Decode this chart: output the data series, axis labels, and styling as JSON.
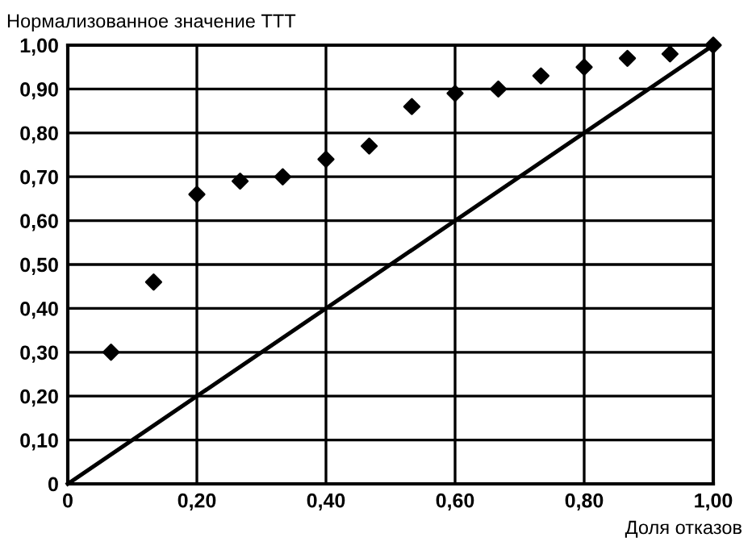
{
  "chart_data": {
    "type": "scatter",
    "ylabel": "Нормализованное значение ТТТ",
    "xlabel": "Доля отказов",
    "series": [
      {
        "color": "#000000",
        "marker": "diamond",
        "x": [
          0.067,
          0.133,
          0.2,
          0.267,
          0.333,
          0.4,
          0.467,
          0.533,
          0.6,
          0.667,
          0.733,
          0.8,
          0.867,
          0.933,
          1.0
        ],
        "values": [
          0.3,
          0.46,
          0.66,
          0.69,
          0.7,
          0.74,
          0.77,
          0.86,
          0.89,
          0.9,
          0.93,
          0.95,
          0.97,
          0.98,
          1.0
        ]
      },
      {
        "type": "line",
        "color": "#000000",
        "marker": "none",
        "line_style": "solid",
        "x": [
          0,
          1
        ],
        "values": [
          0,
          1
        ]
      }
    ],
    "xlim": [
      0,
      1
    ],
    "ylim": [
      0,
      1
    ],
    "xticks": [
      0,
      {
        "value": 0.2,
        "label": "0,20"
      },
      {
        "value": 0.4,
        "label": "0,40"
      },
      {
        "value": 0.6,
        "label": "0,60"
      },
      {
        "value": 0.8,
        "label": "0,80"
      },
      {
        "value": 1.0,
        "label": "1,00"
      }
    ],
    "yticks": [
      0,
      {
        "value": 0.1,
        "label": "0,10"
      },
      {
        "value": 0.2,
        "label": "0,20"
      },
      {
        "value": 0.3,
        "label": "0,30"
      },
      {
        "value": 0.4,
        "label": "0,40"
      },
      {
        "value": 0.5,
        "label": "0,50"
      },
      {
        "value": 0.6,
        "label": "0,60"
      },
      {
        "value": 0.7,
        "label": "0,70"
      },
      {
        "value": 0.8,
        "label": "0,80"
      },
      {
        "value": 0.9,
        "label": "0,90"
      },
      {
        "value": 1.0,
        "label": "1,00"
      }
    ],
    "grid": true,
    "legend": false
  }
}
